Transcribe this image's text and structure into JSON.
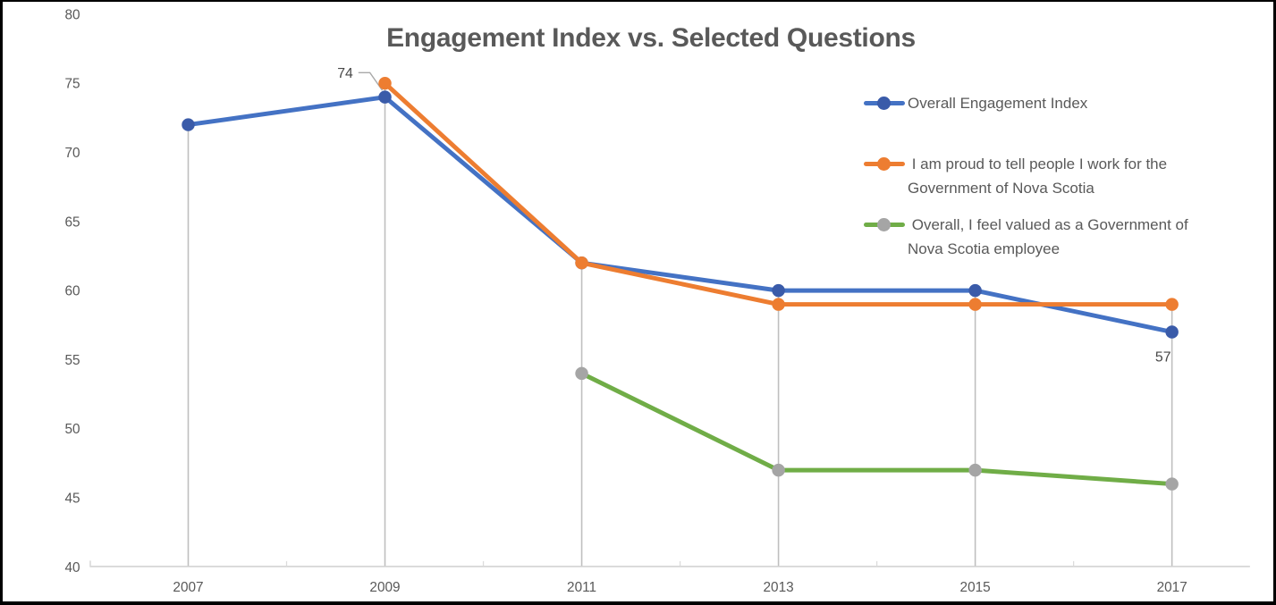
{
  "chart_data": {
    "type": "line",
    "title": "Engagement Index vs. Selected Questions",
    "x": [
      2007,
      2009,
      2011,
      2013,
      2015,
      2017
    ],
    "x_tick_labels": [
      "2007",
      "2009",
      "2011",
      "2013",
      "2015",
      "2017"
    ],
    "y_tick_labels": [
      "40",
      "45",
      "50",
      "55",
      "60",
      "65",
      "70",
      "75",
      "80"
    ],
    "ylim": [
      40,
      80
    ],
    "ytick_step": 5,
    "grid": "vertical-drop-lines",
    "legend_position": "right-inside",
    "series": [
      {
        "name": "Overall Engagement Index",
        "color": "#4472C4",
        "marker_color": "#3A5BA9",
        "values": [
          72,
          74,
          62,
          60,
          60,
          57
        ]
      },
      {
        "name": "I am proud to tell people I work for the Government of Nova Scotia",
        "color": "#ED7D31",
        "marker_color": "#ED7D31",
        "values": [
          null,
          75,
          62,
          59,
          59,
          59
        ]
      },
      {
        "name": "Overall, I feel valued as a Government of Nova Scotia employee",
        "color": "#70AD47",
        "marker_color": "#A5A5A5",
        "values": [
          null,
          null,
          54,
          47,
          47,
          46
        ]
      }
    ],
    "annotations": [
      {
        "label": "74",
        "series": 0,
        "x": 2009,
        "value": 74
      },
      {
        "label": "57",
        "series": 0,
        "x": 2017,
        "value": 57
      }
    ]
  },
  "legend": {
    "items": [
      {
        "label": "Overall Engagement Index",
        "lines": [
          "Overall Engagement Index"
        ]
      },
      {
        "label": "I am proud to tell people I work for the Government of Nova Scotia",
        "lines": [
          " I am proud to tell people I work for the",
          "Government of Nova Scotia"
        ]
      },
      {
        "label": "Overall, I feel valued as a Government of Nova Scotia employee",
        "lines": [
          " Overall, I feel valued as a Government of",
          "Nova Scotia employee"
        ]
      }
    ]
  },
  "palette": {
    "title_text": "#595959",
    "axis_label_text": "#595959",
    "annotation_text": "#474747",
    "axis_line": "#D6D6D6",
    "minor_tick": "#DCDCDC",
    "drop_line": "#BFBFBF",
    "leader_line": "#A8A8A8",
    "background": "#FFFFFF",
    "border": "#000000"
  }
}
